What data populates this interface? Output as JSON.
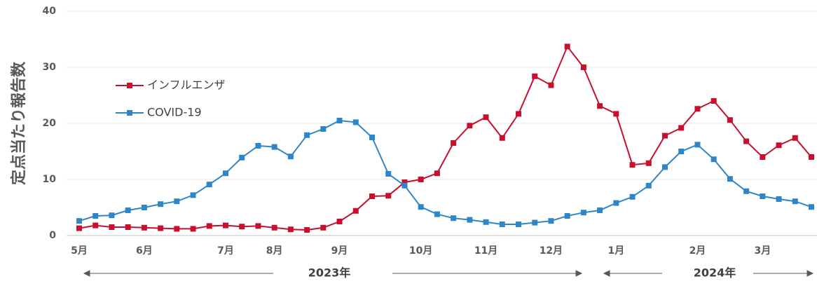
{
  "chart_data": {
    "type": "line",
    "y_label": "定点当たり報告数",
    "categories": [
      "5月",
      null,
      null,
      null,
      "6月",
      null,
      null,
      null,
      null,
      "7月",
      null,
      null,
      "8月",
      null,
      null,
      null,
      "9月",
      null,
      null,
      null,
      null,
      "10月",
      null,
      null,
      null,
      "11月",
      null,
      null,
      null,
      "12月",
      null,
      null,
      null,
      "1月",
      null,
      null,
      null,
      null,
      "2月",
      null,
      null,
      null,
      "3月",
      null,
      null,
      null
    ],
    "years": [
      "2023年",
      "2024年"
    ],
    "series": [
      {
        "name": "インフルエンザ",
        "color": "#c8102e",
        "values": [
          1.3,
          1.8,
          1.5,
          1.5,
          1.4,
          1.3,
          1.2,
          1.2,
          1.7,
          1.8,
          1.6,
          1.7,
          1.4,
          1.1,
          1.0,
          1.4,
          2.5,
          4.4,
          7.0,
          7.1,
          9.5,
          10.0,
          11.1,
          16.5,
          19.6,
          21.1,
          17.4,
          21.7,
          28.4,
          26.8,
          33.7,
          30.0,
          23.1,
          21.7,
          12.6,
          12.9,
          17.8,
          19.2,
          22.6,
          24.0,
          20.6,
          16.8,
          14.0,
          16.1,
          17.4,
          14.0
        ]
      },
      {
        "name": "COVID-19",
        "color": "#2e86c8",
        "values": [
          2.6,
          3.5,
          3.6,
          4.5,
          5.0,
          5.6,
          6.1,
          7.2,
          9.1,
          11.1,
          13.9,
          16.0,
          15.8,
          14.1,
          17.9,
          19.0,
          20.5,
          20.2,
          17.5,
          11.0,
          8.9,
          5.1,
          3.8,
          3.1,
          2.8,
          2.4,
          2.0,
          2.0,
          2.3,
          2.6,
          3.5,
          4.1,
          4.5,
          5.8,
          6.9,
          8.9,
          12.2,
          15.0,
          16.2,
          13.6,
          10.1,
          7.9,
          7.0,
          6.5,
          6.1,
          5.1
        ]
      }
    ],
    "ylim": [
      0,
      40
    ],
    "yticks": [
      0,
      10,
      20,
      30,
      40
    ],
    "grid": true
  }
}
